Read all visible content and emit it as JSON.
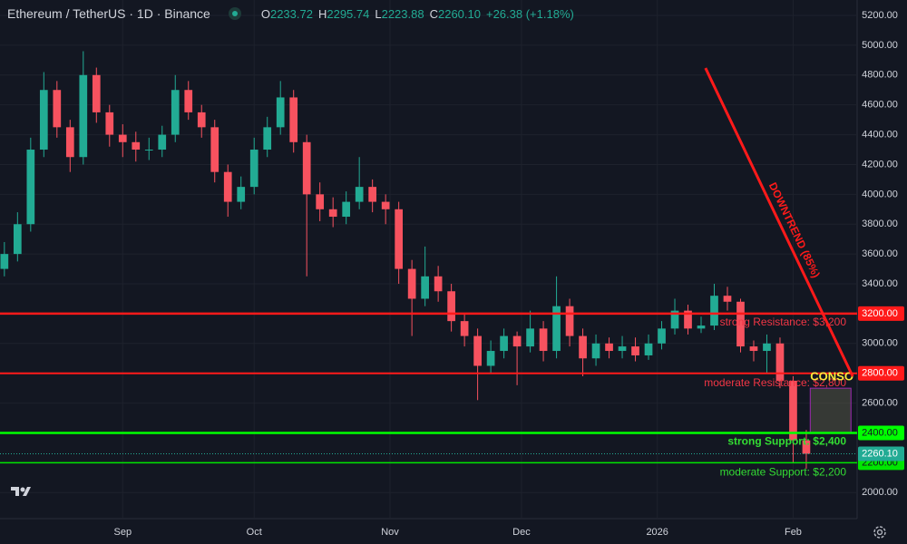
{
  "chart_data": {
    "type": "candlestick",
    "header": {
      "symbol": "Ethereum / TetherUS · 1D · Binance",
      "ohlc": [
        {
          "key": "O",
          "value": "2233.72"
        },
        {
          "key": "H",
          "value": "2295.74"
        },
        {
          "key": "L",
          "value": "2223.88"
        },
        {
          "key": "C",
          "value": "2260.10"
        }
      ],
      "change": "+26.38 (+1.18%)"
    },
    "x": [
      1,
      4,
      7,
      10,
      13,
      16,
      19,
      22,
      25,
      28,
      31,
      34,
      37,
      40,
      43,
      46,
      49,
      52,
      55,
      58,
      61,
      64,
      67,
      70,
      73,
      76,
      79,
      82,
      85,
      88,
      91,
      94,
      97,
      100,
      103,
      106,
      109,
      112,
      115,
      118,
      121,
      124,
      127,
      130,
      133,
      136,
      139,
      142,
      145,
      148,
      151,
      154,
      157,
      160,
      163,
      166,
      169,
      172,
      175,
      178,
      181,
      184
    ],
    "open": [
      3500,
      3600,
      3800,
      4300,
      4700,
      4450,
      4250,
      4800,
      4550,
      4400,
      4350,
      4300,
      4300,
      4400,
      4700,
      4550,
      4450,
      4150,
      3950,
      4050,
      4300,
      4450,
      4650,
      4350,
      4000,
      3900,
      3850,
      3950,
      4050,
      3950,
      3900,
      3500,
      3300,
      3450,
      3350,
      3150,
      3050,
      2850,
      2950,
      3050,
      2980,
      3100,
      2950,
      3250,
      3050,
      2900,
      3000,
      2950,
      2980,
      2920,
      3000,
      3100,
      3220,
      3100,
      3120,
      3320,
      3280,
      2980,
      2950,
      3000,
      2750,
      2350
    ],
    "high": [
      3680,
      3880,
      4380,
      4820,
      4760,
      4500,
      4960,
      4850,
      4600,
      4470,
      4420,
      4380,
      4460,
      4800,
      4760,
      4600,
      4500,
      4200,
      4120,
      4380,
      4520,
      4760,
      4700,
      4400,
      4080,
      3980,
      4020,
      4250,
      4100,
      4000,
      3950,
      3560,
      3650,
      3520,
      3400,
      3200,
      3100,
      3020,
      3100,
      3080,
      3220,
      3150,
      3450,
      3300,
      3100,
      3060,
      3040,
      3050,
      3040,
      3060,
      3150,
      3300,
      3260,
      3180,
      3400,
      3380,
      3300,
      3020,
      3060,
      3040,
      2780,
      2420
    ],
    "low": [
      3450,
      3550,
      3750,
      4250,
      4380,
      4150,
      4200,
      4480,
      4320,
      4250,
      4220,
      4230,
      4250,
      4350,
      4500,
      4380,
      4080,
      3850,
      3900,
      4000,
      4250,
      4400,
      4280,
      3450,
      3820,
      3780,
      3800,
      3900,
      3880,
      3800,
      3400,
      3050,
      3250,
      3280,
      3080,
      2980,
      2620,
      2800,
      2900,
      2720,
      2940,
      2880,
      2900,
      2980,
      2780,
      2850,
      2900,
      2900,
      2880,
      2890,
      2960,
      3060,
      3060,
      3070,
      3090,
      3220,
      2940,
      2880,
      2800,
      2700,
      2200,
      2160
    ],
    "close": [
      3600,
      3800,
      4300,
      4700,
      4450,
      4250,
      4800,
      4550,
      4400,
      4350,
      4300,
      4300,
      4400,
      4700,
      4550,
      4450,
      4150,
      3950,
      4050,
      4300,
      4450,
      4650,
      4350,
      4000,
      3900,
      3850,
      3950,
      4050,
      3950,
      3900,
      3500,
      3300,
      3450,
      3350,
      3150,
      3050,
      2850,
      2950,
      3050,
      2980,
      3100,
      2950,
      3250,
      3050,
      2900,
      3000,
      2950,
      2980,
      2920,
      3000,
      3100,
      3220,
      3100,
      3120,
      3320,
      3280,
      2980,
      2950,
      3000,
      2750,
      2350,
      2260.1
    ],
    "up_color": "#22ab94",
    "down_color": "#f7525f",
    "xlim": [
      0,
      195.6
    ],
    "xticks": [
      {
        "value": 28,
        "label": "Sep"
      },
      {
        "value": 58,
        "label": "Oct"
      },
      {
        "value": 89,
        "label": "Nov"
      },
      {
        "value": 119,
        "label": "Dec"
      },
      {
        "value": 150,
        "label": "2026"
      },
      {
        "value": 181,
        "label": "Feb"
      }
    ],
    "ylim": [
      1825.3,
      5303.4
    ],
    "yticks": [
      {
        "value": 2000,
        "label": "2000.00"
      },
      {
        "value": 2200,
        "label": "2200.00"
      },
      {
        "value": 2400,
        "label": "2400.00"
      },
      {
        "value": 2600,
        "label": "2600.00"
      },
      {
        "value": 2800,
        "label": "2800.00"
      },
      {
        "value": 3000,
        "label": "3000.00"
      },
      {
        "value": 3200,
        "label": "3200.00"
      },
      {
        "value": 3400,
        "label": "3400.00"
      },
      {
        "value": 3600,
        "label": "3600.00"
      },
      {
        "value": 3800,
        "label": "3800.00"
      },
      {
        "value": 4000,
        "label": "4000.00"
      },
      {
        "value": 4200,
        "label": "4200.00"
      },
      {
        "value": 4400,
        "label": "4400.00"
      },
      {
        "value": 4600,
        "label": "4600.00"
      },
      {
        "value": 4800,
        "label": "4800.00"
      },
      {
        "value": 5000,
        "label": "5000.00"
      },
      {
        "value": 5200,
        "label": "5200.00"
      }
    ],
    "grid": true,
    "levels": [
      {
        "value": 3200,
        "label": "3200.00",
        "text": "strong Resistance: $3,200",
        "color": "#ff1a1a",
        "text_color": "#f23645",
        "tag_text_color": "#ffffff",
        "width": 2.5
      },
      {
        "value": 2800,
        "label": "2800.00",
        "text": "moderate Resistance: $2,800",
        "color": "#ff1a1a",
        "text_color": "#f23645",
        "tag_text_color": "#ffffff",
        "width": 2
      },
      {
        "value": 2400,
        "label": "2400.00",
        "text": "strong Support: $2,400",
        "color": "#00ff00",
        "text_color": "#33dd33",
        "tag_text_color": "#131722",
        "width": 2.5
      },
      {
        "value": 2200,
        "label": "2200.00",
        "text": "moderate Support: $2,200",
        "color": "#00e600",
        "text_color": "#33dd33",
        "tag_text_color": "#131722",
        "width": 1.5
      }
    ],
    "last": {
      "value": 2260.1,
      "label": "2260.10",
      "color": "#22ab94"
    },
    "trendline": {
      "x": [
        161,
        194.6
      ],
      "y": [
        4847,
        2779
      ],
      "label": "DOWNTREND (85%)",
      "color": "#ff1a1a"
    },
    "box": {
      "x": [
        184.9,
        194.2
      ],
      "y": [
        2700,
        2400
      ],
      "label": "CONSO",
      "label_color": "#ffeb3b"
    }
  }
}
